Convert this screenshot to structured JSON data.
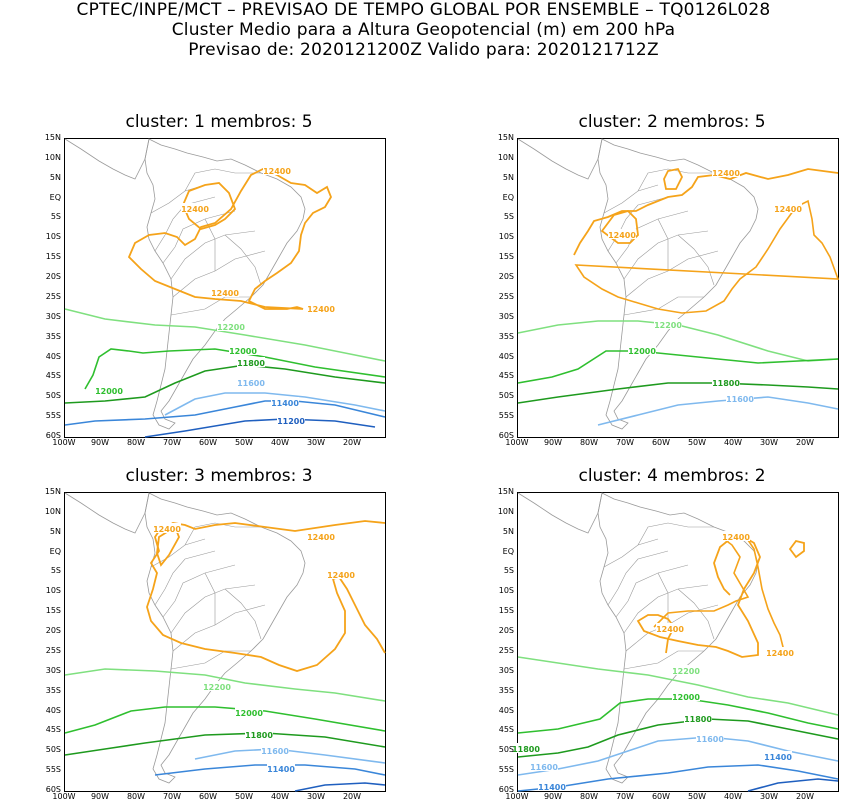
{
  "header": {
    "line1": "CPTEC/INPE/MCT – PREVISAO DE TEMPO GLOBAL POR ENSEMBLE – TQ0126L028",
    "line2": "Cluster Medio para a Altura Geopotencial (m) em 200 hPa",
    "line3": "Previsao de: 2020121200Z    Valido para: 2020121712Z"
  },
  "axes": {
    "lat_labels": [
      "15N",
      "10N",
      "5N",
      "EQ",
      "5S",
      "10S",
      "15S",
      "20S",
      "25S",
      "30S",
      "35S",
      "40S",
      "45S",
      "50S",
      "55S",
      "60S"
    ],
    "lon_labels": [
      "100W",
      "90W",
      "80W",
      "70W",
      "60W",
      "50W",
      "40W",
      "30W",
      "20W"
    ]
  },
  "colors": {
    "c12400": "#f5a31a",
    "c12200": "#7fe07f",
    "c12000": "#2fbf2f",
    "c11800": "#1e9a1e",
    "c11600": "#7fb9ee",
    "c11400": "#3a86d9",
    "c11200": "#1f5fbf",
    "coast": "#9a9a9a"
  },
  "panels": [
    {
      "title": "cluster: 1   membros: 5",
      "labels": [
        "12400",
        "12400",
        "12400",
        "12400",
        "12200",
        "12000",
        "11800",
        "12000",
        "11600",
        "11400",
        "11200"
      ]
    },
    {
      "title": "cluster: 2   membros: 5",
      "labels": [
        "12400",
        "12400",
        "12400",
        "12200",
        "12000",
        "11800",
        "11600"
      ]
    },
    {
      "title": "cluster: 3   membros: 3",
      "labels": [
        "12400",
        "12400",
        "12400",
        "12200",
        "12000",
        "11800",
        "11600",
        "11400"
      ]
    },
    {
      "title": "cluster: 4   membros: 2",
      "labels": [
        "12400",
        "12400",
        "12400",
        "12200",
        "12000",
        "11800",
        "11800",
        "11600",
        "11600",
        "11400",
        "11400"
      ]
    }
  ]
}
